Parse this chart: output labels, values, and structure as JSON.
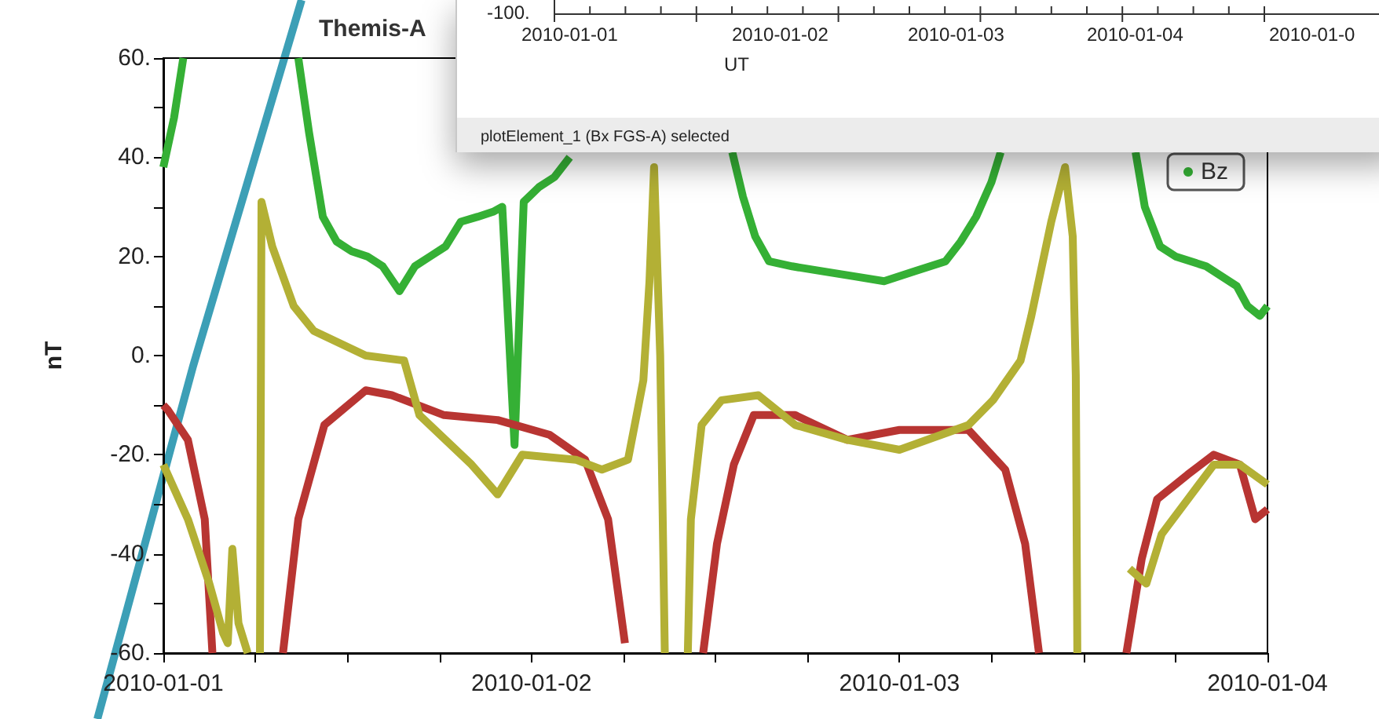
{
  "chart_data": {
    "type": "line",
    "title": "Themis-A",
    "ylabel": "nT",
    "annotations": [
      "-100.",
      "2010-01-01",
      "2010-01-02",
      "2010-01-03",
      "2010-01-04",
      "2010-01-0",
      "UT",
      "plotElement_1 (Bx FGS-A) selected"
    ],
    "xlim": [
      "2010-01-01",
      "2010-01-04"
    ],
    "xticks": [
      {
        "value": "2010-01-01",
        "label": "2010-01-01"
      },
      {
        "value": "2010-01-01T06:00",
        "label": null
      },
      {
        "value": "2010-01-01T12:00",
        "label": null
      },
      {
        "value": "2010-01-01T18:00",
        "label": null
      },
      {
        "value": "2010-01-02",
        "label": "2010-01-02"
      },
      {
        "value": "2010-01-02T06:00",
        "label": null
      },
      {
        "value": "2010-01-02T12:00",
        "label": null
      },
      {
        "value": "2010-01-02T18:00",
        "label": null
      },
      {
        "value": "2010-01-03",
        "label": "2010-01-03"
      },
      {
        "value": "2010-01-03T06:00",
        "label": null
      },
      {
        "value": "2010-01-03T12:00",
        "label": null
      },
      {
        "value": "2010-01-03T18:00",
        "label": null
      },
      {
        "value": "2010-01-04",
        "label": "2010-01-04"
      }
    ],
    "ylim": [
      -60,
      60
    ],
    "yticks": [
      {
        "value": -60,
        "label": "-60."
      },
      {
        "value": -50,
        "label": null
      },
      {
        "value": -40,
        "label": "-40."
      },
      {
        "value": -30,
        "label": null
      },
      {
        "value": -20,
        "label": "-20."
      },
      {
        "value": -10,
        "label": null
      },
      {
        "value": 0,
        "label": "0."
      },
      {
        "value": 10,
        "label": null
      },
      {
        "value": 20,
        "label": "20."
      },
      {
        "value": 30,
        "label": null
      },
      {
        "value": 40,
        "label": "40."
      },
      {
        "value": 50,
        "label": null
      },
      {
        "value": 60,
        "label": "60."
      }
    ],
    "legend": "top right",
    "series": [
      {
        "name": "Bz",
        "color": "#35b035",
        "x": [
          "2010-01-01T00:00",
          "2010-01-01T00:42",
          "2010-01-01T01:18",
          "2010-01-01T02:00",
          "2010-01-01T08:48",
          "2010-01-01T09:30",
          "2010-01-01T10:24",
          "2010-01-01T11:18",
          "2010-01-01T12:18",
          "2010-01-01T13:18",
          "2010-01-01T14:18",
          "2010-01-01T15:24",
          "2010-01-01T16:24",
          "2010-01-01T17:24",
          "2010-01-01T18:24",
          "2010-01-01T19:24",
          "2010-01-01T20:30",
          "2010-01-01T21:30",
          "2010-01-01T22:06",
          "2010-01-01T22:54",
          "2010-01-01T23:30",
          "2010-01-02T00:30",
          "2010-01-02T01:30",
          "2010-01-02T02:30",
          "2010-01-02T03:24",
          "2010-01-02T04:00",
          "2010-01-02T13:06",
          "2010-01-02T13:48",
          "2010-01-02T14:36",
          "2010-01-02T15:30",
          "2010-01-02T17:00",
          "2010-01-02T19:00",
          "2010-01-02T21:00",
          "2010-01-02T23:00",
          "2010-01-03T01:00",
          "2010-01-03T03:00",
          "2010-01-03T04:00",
          "2010-01-03T05:00",
          "2010-01-03T06:00",
          "2010-01-03T06:36",
          "2010-01-03T08:00",
          "2010-01-03T15:24",
          "2010-01-03T16:00",
          "2010-01-03T17:00",
          "2010-01-03T18:00",
          "2010-01-03T20:00",
          "2010-01-03T22:00",
          "2010-01-03T22:42",
          "2010-01-03T23:30",
          "2010-01-04T00:00"
        ],
        "values": [
          38,
          48,
          60,
          null,
          60,
          45,
          28,
          23,
          21,
          20,
          18,
          13,
          18,
          20,
          22,
          27,
          28,
          29,
          30,
          -18,
          31,
          34,
          36,
          40,
          null,
          null,
          41,
          32,
          24,
          19,
          18,
          17,
          16,
          15,
          17,
          19,
          23,
          28,
          35,
          41,
          null,
          41,
          30,
          22,
          20,
          18,
          14,
          10,
          8,
          10
        ]
      },
      {
        "color": "#b83532",
        "x": [
          "2010-01-01T00:00",
          "2010-01-01T00:18",
          "2010-01-01T01:36",
          "2010-01-01T02:42",
          "2010-01-01T03:12",
          "2010-01-01T05:00",
          "2010-01-01T07:48",
          "2010-01-01T08:48",
          "2010-01-01T10:30",
          "2010-01-01T13:12",
          "2010-01-01T14:54",
          "2010-01-01T18:18",
          "2010-01-01T21:48",
          "2010-01-02T01:12",
          "2010-01-02T03:30",
          "2010-01-02T05:00",
          "2010-01-02T06:06",
          "2010-01-02T08:00",
          "2010-01-02T11:12",
          "2010-01-02T12:06",
          "2010-01-02T13:12",
          "2010-01-02T14:30",
          "2010-01-02T17:12",
          "2010-01-02T20:36",
          "2010-01-03T00:00",
          "2010-01-03T04:30",
          "2010-01-03T06:54",
          "2010-01-03T08:12",
          "2010-01-03T09:06",
          "2010-01-03T12:00",
          "2010-01-03T14:48",
          "2010-01-03T15:48",
          "2010-01-03T16:48",
          "2010-01-03T18:48",
          "2010-01-03T20:30",
          "2010-01-03T22:12",
          "2010-01-03T23:12",
          "2010-01-04T00:00"
        ],
        "values": [
          -10,
          -11,
          -17,
          -33,
          -60,
          null,
          -60,
          -33,
          -14,
          -7,
          -8,
          -12,
          -13,
          -16,
          -21,
          -33,
          -58,
          null,
          -60,
          -38,
          -22,
          -12,
          -12,
          -17,
          -15,
          -15,
          -23,
          -38,
          -60,
          null,
          -60,
          -41,
          -29,
          -24,
          -20,
          -22,
          -33,
          -31
        ]
      },
      {
        "color": "#b3b035",
        "x": [
          "2010-01-01T00:00",
          "2010-01-01T01:36",
          "2010-01-01T03:00",
          "2010-01-01T03:54",
          "2010-01-01T04:12",
          "2010-01-01T04:30",
          "2010-01-01T04:54",
          "2010-01-01T05:30",
          "2010-01-01T06:00",
          "2010-01-01T06:18",
          "2010-01-01T06:24",
          "2010-01-01T07:06",
          "2010-01-01T08:30",
          "2010-01-01T09:48",
          "2010-01-01T13:12",
          "2010-01-01T15:42",
          "2010-01-01T16:42",
          "2010-01-01T20:06",
          "2010-01-01T21:48",
          "2010-01-01T23:24",
          "2010-01-02T02:54",
          "2010-01-02T04:36",
          "2010-01-02T06:18",
          "2010-01-02T07:18",
          "2010-01-02T07:42",
          "2010-01-02T08:00",
          "2010-01-02T08:24",
          "2010-01-02T08:42",
          "2010-01-02T09:00",
          "2010-01-02T10:12",
          "2010-01-02T10:24",
          "2010-01-02T11:06",
          "2010-01-02T12:24",
          "2010-01-02T14:48",
          "2010-01-02T17:12",
          "2010-01-02T20:36",
          "2010-01-03T00:00",
          "2010-01-03T04:30",
          "2010-01-03T06:06",
          "2010-01-03T07:54",
          "2010-01-03T08:36",
          "2010-01-03T09:54",
          "2010-01-03T10:48",
          "2010-01-03T11:18",
          "2010-01-03T11:30",
          "2010-01-03T11:36",
          "2010-01-03T13:00",
          "2010-01-03T15:00",
          "2010-01-03T16:06",
          "2010-01-03T17:06",
          "2010-01-03T18:48",
          "2010-01-03T20:30",
          "2010-01-03T22:12",
          "2010-01-04T00:00"
        ],
        "values": [
          -22,
          -33,
          -46,
          -56,
          -58,
          -39,
          -54,
          -60,
          null,
          -60,
          31,
          22,
          10,
          5,
          0,
          -1,
          -12,
          -22,
          -28,
          -20,
          -21,
          -23,
          -21,
          -5,
          15,
          38,
          0,
          -60,
          null,
          -60,
          -33,
          -14,
          -9,
          -8,
          -14,
          -17,
          -19,
          -14,
          -9,
          -1,
          8,
          27,
          38,
          24,
          -4,
          -60,
          null,
          -43,
          -46,
          -36,
          -29,
          -22,
          -22,
          -26
        ]
      }
    ]
  }
}
